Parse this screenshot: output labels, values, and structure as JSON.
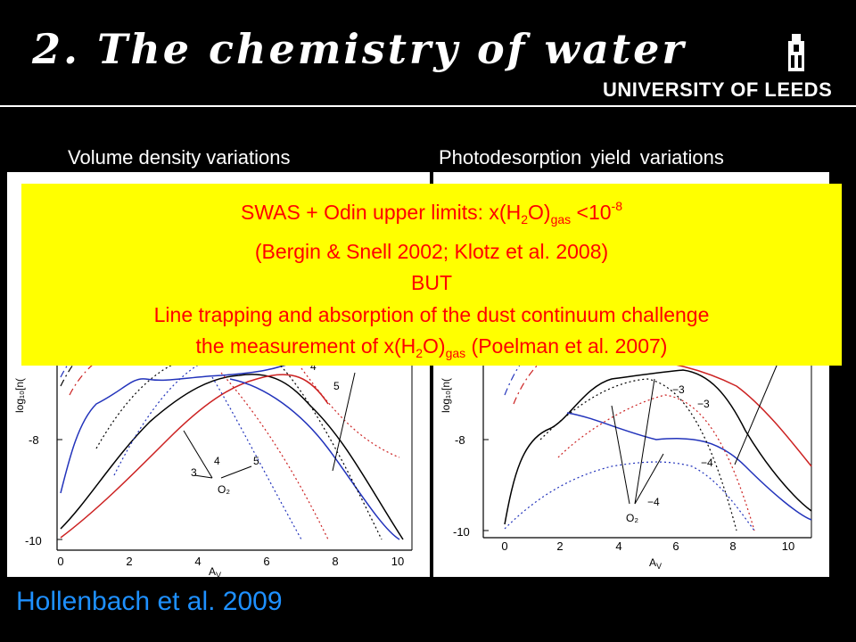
{
  "slide": {
    "title": "2. The chemistry of water",
    "logo": {
      "text": "UNIVERSITY OF LEEDS",
      "icon": "tower-icon"
    },
    "left_panel_label": "Volume density variations",
    "right_panel_label": "Photodesorption yield variations",
    "callout": {
      "line1_a": "SWAS + Odin upper limits: x(H",
      "line1_sub": "2",
      "line1_b": "O)",
      "line1_sub2": "gas",
      "line1_c": " <10",
      "line1_sup": "-8",
      "line2": "(Bergin & Snell 2002; Klotz et al. 2008)",
      "line3": "BUT",
      "line4": "Line trapping and absorption of the dust continuum challenge",
      "line5_a": "the measurement of x(H",
      "line5_sub": "2",
      "line5_b": "O)",
      "line5_sub2": "gas",
      "line5_c": " (Poelman et al. 2007)"
    },
    "credit": "Hollenbach et al. 2009"
  },
  "left_plot": {
    "ylabel": "log₁₀[n(",
    "xlabel": "A",
    "xlabel_sub": "V",
    "yticks": [
      "-8",
      "-10"
    ],
    "xticks": [
      "0",
      "2",
      "4",
      "6",
      "8",
      "10"
    ],
    "annotations": [
      "4",
      "5",
      "3",
      "4",
      "5",
      "O₂"
    ]
  },
  "right_plot": {
    "ylabel": "log₁₀[n(",
    "xlabel": "A",
    "xlabel_sub": "V",
    "yticks": [
      "-8",
      "-10"
    ],
    "xticks": [
      "0",
      "2",
      "4",
      "6",
      "8",
      "10"
    ],
    "annotations": [
      "−3",
      "−3",
      "−4",
      "−4",
      "O₂"
    ]
  },
  "colors": {
    "callout_bg": "#ffff00",
    "callout_text": "#ff0000",
    "credit": "#1e90ff",
    "series_black": "#000000",
    "series_red": "#cc2222",
    "series_blue": "#2233bb"
  }
}
